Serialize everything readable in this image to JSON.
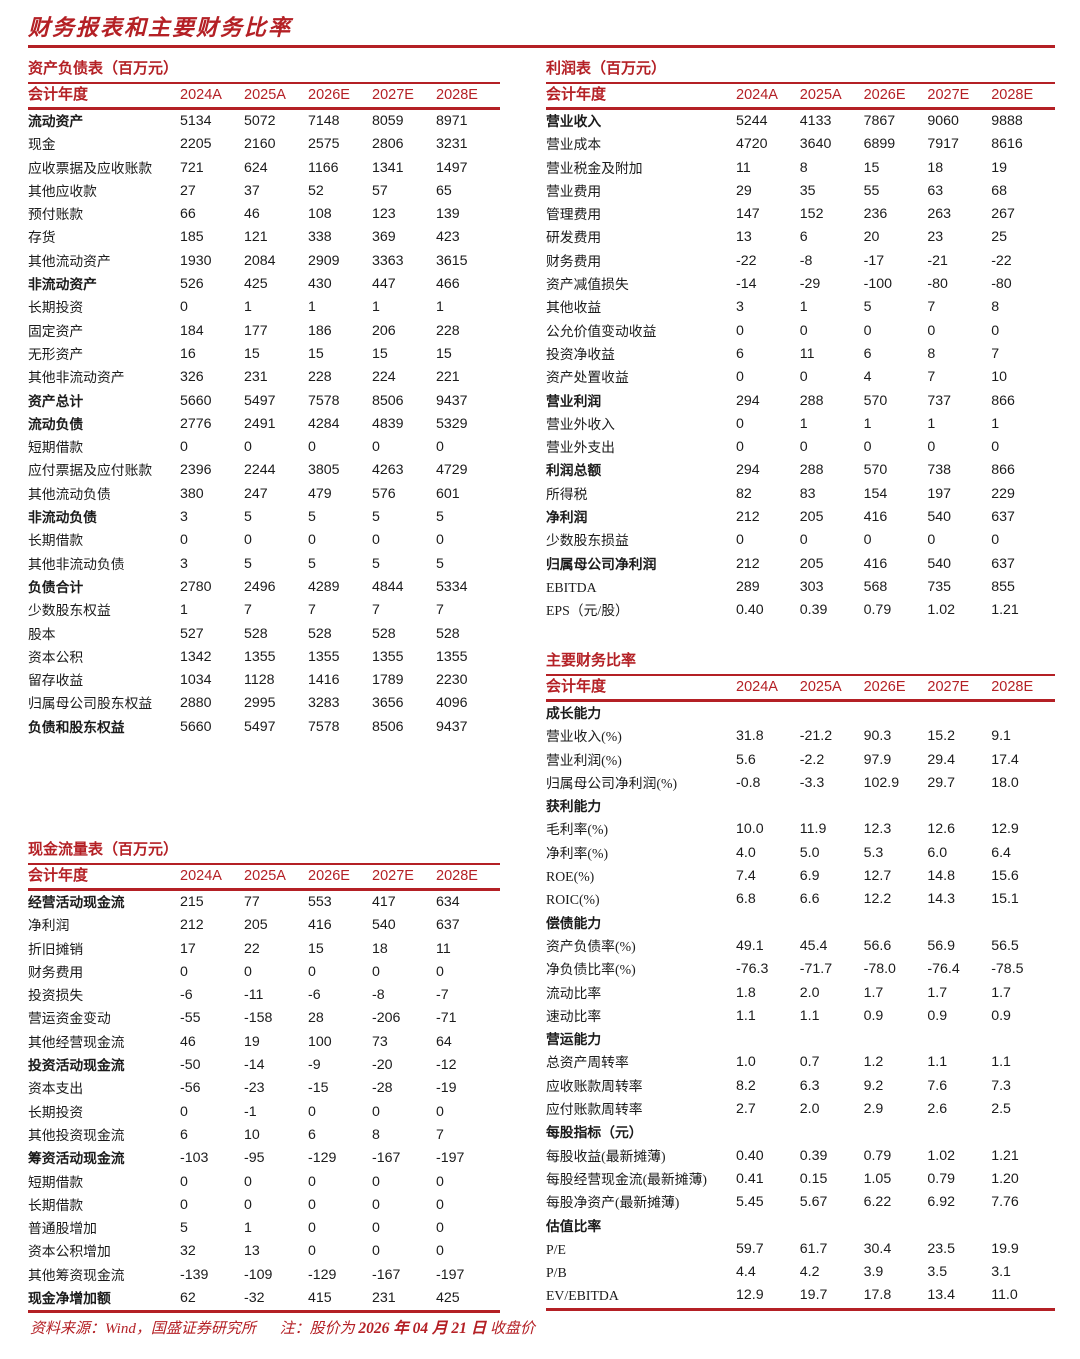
{
  "page": {
    "title": "财务报表和主要财务比率"
  },
  "colors": {
    "accent": "#b42025",
    "ink": "#1b1b1b"
  },
  "year_header": "会计年度",
  "years": [
    "2024A",
    "2025A",
    "2026E",
    "2027E",
    "2028E"
  ],
  "tables": {
    "balance_sheet": {
      "title": "资产负债表（百万元）",
      "rows": [
        {
          "label": "流动资产",
          "bold": true,
          "values": [
            "5134",
            "5072",
            "7148",
            "8059",
            "8971"
          ]
        },
        {
          "label": "现金",
          "bold": false,
          "values": [
            "2205",
            "2160",
            "2575",
            "2806",
            "3231"
          ]
        },
        {
          "label": "应收票据及应收账款",
          "bold": false,
          "values": [
            "721",
            "624",
            "1166",
            "1341",
            "1497"
          ]
        },
        {
          "label": "其他应收款",
          "bold": false,
          "values": [
            "27",
            "37",
            "52",
            "57",
            "65"
          ]
        },
        {
          "label": "预付账款",
          "bold": false,
          "values": [
            "66",
            "46",
            "108",
            "123",
            "139"
          ]
        },
        {
          "label": "存货",
          "bold": false,
          "values": [
            "185",
            "121",
            "338",
            "369",
            "423"
          ]
        },
        {
          "label": "其他流动资产",
          "bold": false,
          "values": [
            "1930",
            "2084",
            "2909",
            "3363",
            "3615"
          ]
        },
        {
          "label": "非流动资产",
          "bold": true,
          "values": [
            "526",
            "425",
            "430",
            "447",
            "466"
          ]
        },
        {
          "label": "长期投资",
          "bold": false,
          "values": [
            "0",
            "1",
            "1",
            "1",
            "1"
          ]
        },
        {
          "label": "固定资产",
          "bold": false,
          "values": [
            "184",
            "177",
            "186",
            "206",
            "228"
          ]
        },
        {
          "label": "无形资产",
          "bold": false,
          "values": [
            "16",
            "15",
            "15",
            "15",
            "15"
          ]
        },
        {
          "label": "其他非流动资产",
          "bold": false,
          "values": [
            "326",
            "231",
            "228",
            "224",
            "221"
          ]
        },
        {
          "label": "资产总计",
          "bold": true,
          "values": [
            "5660",
            "5497",
            "7578",
            "8506",
            "9437"
          ]
        },
        {
          "label": "流动负债",
          "bold": true,
          "values": [
            "2776",
            "2491",
            "4284",
            "4839",
            "5329"
          ]
        },
        {
          "label": "短期借款",
          "bold": false,
          "values": [
            "0",
            "0",
            "0",
            "0",
            "0"
          ]
        },
        {
          "label": "应付票据及应付账款",
          "bold": false,
          "values": [
            "2396",
            "2244",
            "3805",
            "4263",
            "4729"
          ]
        },
        {
          "label": "其他流动负债",
          "bold": false,
          "values": [
            "380",
            "247",
            "479",
            "576",
            "601"
          ]
        },
        {
          "label": "非流动负债",
          "bold": true,
          "values": [
            "3",
            "5",
            "5",
            "5",
            "5"
          ]
        },
        {
          "label": "长期借款",
          "bold": false,
          "values": [
            "0",
            "0",
            "0",
            "0",
            "0"
          ]
        },
        {
          "label": "其他非流动负债",
          "bold": false,
          "values": [
            "3",
            "5",
            "5",
            "5",
            "5"
          ]
        },
        {
          "label": "负债合计",
          "bold": true,
          "values": [
            "2780",
            "2496",
            "4289",
            "4844",
            "5334"
          ]
        },
        {
          "label": "少数股东权益",
          "bold": false,
          "values": [
            "1",
            "7",
            "7",
            "7",
            "7"
          ]
        },
        {
          "label": "股本",
          "bold": false,
          "values": [
            "527",
            "528",
            "528",
            "528",
            "528"
          ]
        },
        {
          "label": "资本公积",
          "bold": false,
          "values": [
            "1342",
            "1355",
            "1355",
            "1355",
            "1355"
          ]
        },
        {
          "label": "留存收益",
          "bold": false,
          "values": [
            "1034",
            "1128",
            "1416",
            "1789",
            "2230"
          ]
        },
        {
          "label": "归属母公司股东权益",
          "bold": false,
          "values": [
            "2880",
            "2995",
            "3283",
            "3656",
            "4096"
          ]
        },
        {
          "label": "负债和股东权益",
          "bold": true,
          "values": [
            "5660",
            "5497",
            "7578",
            "8506",
            "9437"
          ]
        }
      ]
    },
    "income": {
      "title": "利润表（百万元）",
      "rows": [
        {
          "label": "营业收入",
          "bold": true,
          "values": [
            "5244",
            "4133",
            "7867",
            "9060",
            "9888"
          ]
        },
        {
          "label": "营业成本",
          "bold": false,
          "values": [
            "4720",
            "3640",
            "6899",
            "7917",
            "8616"
          ]
        },
        {
          "label": "营业税金及附加",
          "bold": false,
          "values": [
            "11",
            "8",
            "15",
            "18",
            "19"
          ]
        },
        {
          "label": "营业费用",
          "bold": false,
          "values": [
            "29",
            "35",
            "55",
            "63",
            "68"
          ]
        },
        {
          "label": "管理费用",
          "bold": false,
          "values": [
            "147",
            "152",
            "236",
            "263",
            "267"
          ]
        },
        {
          "label": "研发费用",
          "bold": false,
          "values": [
            "13",
            "6",
            "20",
            "23",
            "25"
          ]
        },
        {
          "label": "财务费用",
          "bold": false,
          "values": [
            "-22",
            "-8",
            "-17",
            "-21",
            "-22"
          ]
        },
        {
          "label": "资产减值损失",
          "bold": false,
          "values": [
            "-14",
            "-29",
            "-100",
            "-80",
            "-80"
          ]
        },
        {
          "label": "其他收益",
          "bold": false,
          "values": [
            "3",
            "1",
            "5",
            "7",
            "8"
          ]
        },
        {
          "label": "公允价值变动收益",
          "bold": false,
          "values": [
            "0",
            "0",
            "0",
            "0",
            "0"
          ]
        },
        {
          "label": "投资净收益",
          "bold": false,
          "values": [
            "6",
            "11",
            "6",
            "8",
            "7"
          ]
        },
        {
          "label": "资产处置收益",
          "bold": false,
          "values": [
            "0",
            "0",
            "4",
            "7",
            "10"
          ]
        },
        {
          "label": "营业利润",
          "bold": true,
          "values": [
            "294",
            "288",
            "570",
            "737",
            "866"
          ]
        },
        {
          "label": "营业外收入",
          "bold": false,
          "values": [
            "0",
            "1",
            "1",
            "1",
            "1"
          ]
        },
        {
          "label": "营业外支出",
          "bold": false,
          "values": [
            "0",
            "0",
            "0",
            "0",
            "0"
          ]
        },
        {
          "label": "利润总额",
          "bold": true,
          "values": [
            "294",
            "288",
            "570",
            "738",
            "866"
          ]
        },
        {
          "label": "所得税",
          "bold": false,
          "values": [
            "82",
            "83",
            "154",
            "197",
            "229"
          ]
        },
        {
          "label": "净利润",
          "bold": true,
          "values": [
            "212",
            "205",
            "416",
            "540",
            "637"
          ]
        },
        {
          "label": "少数股东损益",
          "bold": false,
          "values": [
            "0",
            "0",
            "0",
            "0",
            "0"
          ]
        },
        {
          "label": "归属母公司净利润",
          "bold": true,
          "values": [
            "212",
            "205",
            "416",
            "540",
            "637"
          ]
        },
        {
          "label": "EBITDA",
          "bold": false,
          "values": [
            "289",
            "303",
            "568",
            "735",
            "855"
          ]
        },
        {
          "label": "EPS（元/股）",
          "bold": false,
          "values": [
            "0.40",
            "0.39",
            "0.79",
            "1.02",
            "1.21"
          ]
        }
      ]
    },
    "cashflow": {
      "title": "现金流量表（百万元）",
      "rows": [
        {
          "label": "经营活动现金流",
          "bold": true,
          "values": [
            "215",
            "77",
            "553",
            "417",
            "634"
          ]
        },
        {
          "label": "净利润",
          "bold": false,
          "values": [
            "212",
            "205",
            "416",
            "540",
            "637"
          ]
        },
        {
          "label": "折旧摊销",
          "bold": false,
          "values": [
            "17",
            "22",
            "15",
            "18",
            "11"
          ]
        },
        {
          "label": "财务费用",
          "bold": false,
          "values": [
            "0",
            "0",
            "0",
            "0",
            "0"
          ]
        },
        {
          "label": "投资损失",
          "bold": false,
          "values": [
            "-6",
            "-11",
            "-6",
            "-8",
            "-7"
          ]
        },
        {
          "label": "营运资金变动",
          "bold": false,
          "values": [
            "-55",
            "-158",
            "28",
            "-206",
            "-71"
          ]
        },
        {
          "label": "其他经营现金流",
          "bold": false,
          "values": [
            "46",
            "19",
            "100",
            "73",
            "64"
          ]
        },
        {
          "label": "投资活动现金流",
          "bold": true,
          "values": [
            "-50",
            "-14",
            "-9",
            "-20",
            "-12"
          ]
        },
        {
          "label": "资本支出",
          "bold": false,
          "values": [
            "-56",
            "-23",
            "-15",
            "-28",
            "-19"
          ]
        },
        {
          "label": "长期投资",
          "bold": false,
          "values": [
            "0",
            "-1",
            "0",
            "0",
            "0"
          ]
        },
        {
          "label": "其他投资现金流",
          "bold": false,
          "values": [
            "6",
            "10",
            "6",
            "8",
            "7"
          ]
        },
        {
          "label": "筹资活动现金流",
          "bold": true,
          "values": [
            "-103",
            "-95",
            "-129",
            "-167",
            "-197"
          ]
        },
        {
          "label": "短期借款",
          "bold": false,
          "values": [
            "0",
            "0",
            "0",
            "0",
            "0"
          ]
        },
        {
          "label": "长期借款",
          "bold": false,
          "values": [
            "0",
            "0",
            "0",
            "0",
            "0"
          ]
        },
        {
          "label": "普通股增加",
          "bold": false,
          "values": [
            "5",
            "1",
            "0",
            "0",
            "0"
          ]
        },
        {
          "label": "资本公积增加",
          "bold": false,
          "values": [
            "32",
            "13",
            "0",
            "0",
            "0"
          ]
        },
        {
          "label": "其他筹资现金流",
          "bold": false,
          "values": [
            "-139",
            "-109",
            "-129",
            "-167",
            "-197"
          ]
        },
        {
          "label": "现金净增加额",
          "bold": true,
          "values": [
            "62",
            "-32",
            "415",
            "231",
            "425"
          ]
        }
      ]
    },
    "ratios": {
      "title": "主要财务比率",
      "rows": [
        {
          "label": "成长能力",
          "bold": true,
          "values": []
        },
        {
          "label": "营业收入(%)",
          "bold": false,
          "values": [
            "31.8",
            "-21.2",
            "90.3",
            "15.2",
            "9.1"
          ]
        },
        {
          "label": "营业利润(%)",
          "bold": false,
          "values": [
            "5.6",
            "-2.2",
            "97.9",
            "29.4",
            "17.4"
          ]
        },
        {
          "label": "归属母公司净利润(%)",
          "bold": false,
          "values": [
            "-0.8",
            "-3.3",
            "102.9",
            "29.7",
            "18.0"
          ]
        },
        {
          "label": "获利能力",
          "bold": true,
          "values": []
        },
        {
          "label": "毛利率(%)",
          "bold": false,
          "values": [
            "10.0",
            "11.9",
            "12.3",
            "12.6",
            "12.9"
          ]
        },
        {
          "label": "净利率(%)",
          "bold": false,
          "values": [
            "4.0",
            "5.0",
            "5.3",
            "6.0",
            "6.4"
          ]
        },
        {
          "label": "ROE(%)",
          "bold": false,
          "values": [
            "7.4",
            "6.9",
            "12.7",
            "14.8",
            "15.6"
          ]
        },
        {
          "label": "ROIC(%)",
          "bold": false,
          "values": [
            "6.8",
            "6.6",
            "12.2",
            "14.3",
            "15.1"
          ]
        },
        {
          "label": "偿债能力",
          "bold": true,
          "values": []
        },
        {
          "label": "资产负债率(%)",
          "bold": false,
          "values": [
            "49.1",
            "45.4",
            "56.6",
            "56.9",
            "56.5"
          ]
        },
        {
          "label": "净负债比率(%)",
          "bold": false,
          "values": [
            "-76.3",
            "-71.7",
            "-78.0",
            "-76.4",
            "-78.5"
          ]
        },
        {
          "label": "流动比率",
          "bold": false,
          "values": [
            "1.8",
            "2.0",
            "1.7",
            "1.7",
            "1.7"
          ]
        },
        {
          "label": "速动比率",
          "bold": false,
          "values": [
            "1.1",
            "1.1",
            "0.9",
            "0.9",
            "0.9"
          ]
        },
        {
          "label": "营运能力",
          "bold": true,
          "values": []
        },
        {
          "label": "总资产周转率",
          "bold": false,
          "values": [
            "1.0",
            "0.7",
            "1.2",
            "1.1",
            "1.1"
          ]
        },
        {
          "label": "应收账款周转率",
          "bold": false,
          "values": [
            "8.2",
            "6.3",
            "9.2",
            "7.6",
            "7.3"
          ]
        },
        {
          "label": "应付账款周转率",
          "bold": false,
          "values": [
            "2.7",
            "2.0",
            "2.9",
            "2.6",
            "2.5"
          ]
        },
        {
          "label": "每股指标（元）",
          "bold": true,
          "values": []
        },
        {
          "label": "每股收益(最新摊薄)",
          "bold": false,
          "values": [
            "0.40",
            "0.39",
            "0.79",
            "1.02",
            "1.21"
          ]
        },
        {
          "label": "每股经营现金流(最新摊薄)",
          "bold": false,
          "values": [
            "0.41",
            "0.15",
            "1.05",
            "0.79",
            "1.20"
          ]
        },
        {
          "label": "每股净资产(最新摊薄)",
          "bold": false,
          "values": [
            "5.45",
            "5.67",
            "6.22",
            "6.92",
            "7.76"
          ]
        },
        {
          "label": "估值比率",
          "bold": true,
          "values": []
        },
        {
          "label": "P/E",
          "bold": false,
          "values": [
            "59.7",
            "61.7",
            "30.4",
            "23.5",
            "19.9"
          ]
        },
        {
          "label": "P/B",
          "bold": false,
          "values": [
            "4.4",
            "4.2",
            "3.9",
            "3.5",
            "3.1"
          ]
        },
        {
          "label": "EV/EBITDA",
          "bold": false,
          "values": [
            "12.9",
            "19.7",
            "17.8",
            "13.4",
            "11.0"
          ]
        }
      ]
    }
  },
  "footer": {
    "source": "资料来源：Wind，国盛证券研究所",
    "note": "注：股价为",
    "date": " 2026 年 04 月 21 日",
    "suffix": "收盘价"
  }
}
